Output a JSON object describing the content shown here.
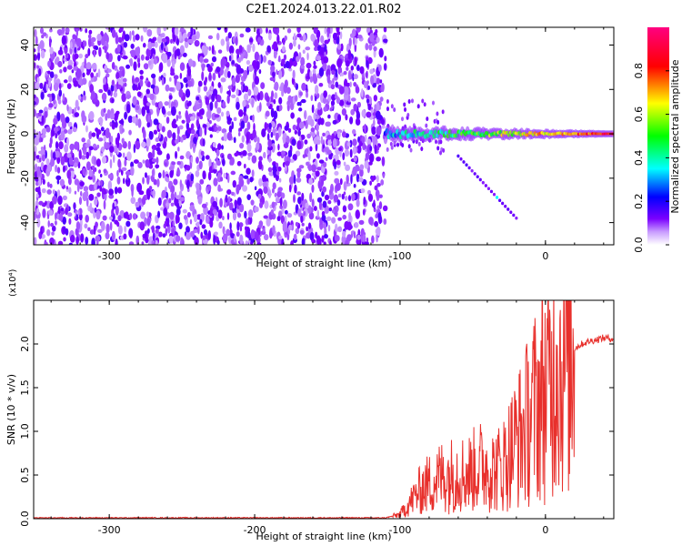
{
  "title": "C2E1.2024.013.22.01.R02",
  "chart_data": [
    {
      "type": "heatmap",
      "xlabel": "Height of straight line (km)",
      "ylabel": "Frequency (Hz)",
      "xlim": [
        -352,
        47
      ],
      "ylim": [
        -50,
        48
      ],
      "xticks": [
        -300,
        -200,
        -100,
        0
      ],
      "xtick_labels": [
        "-300",
        "-200",
        "-100",
        "0"
      ],
      "yticks": [
        -40,
        -20,
        0,
        20,
        40
      ],
      "ytick_labels": [
        "-40",
        "-20",
        "0",
        "20",
        "40"
      ],
      "colorbar": {
        "label": "Normalized spectral amplitude",
        "range": [
          0,
          1
        ],
        "ticks": [
          0.0,
          0.2,
          0.4,
          0.6,
          0.8
        ],
        "tick_labels": [
          "0.0",
          "0.2",
          "0.4",
          "0.6",
          "0.8"
        ],
        "colormap": [
          "#ffffff",
          "#7a00ff",
          "#0000ff",
          "#00ffff",
          "#00ff00",
          "#ffff00",
          "#ff0000",
          "#ff0080"
        ]
      },
      "features": {
        "noise_region_x": [
          -352,
          -110
        ],
        "noise_amplitude": 0.15,
        "signal_band": {
          "x": [
            -110,
            47
          ],
          "frequency": 0,
          "amplitude_start": 0.3,
          "amplitude_end": 0.85
        },
        "secondary_branch": {
          "x": [
            -60,
            -20
          ],
          "frequency": [
            -10,
            -38
          ],
          "amplitude": 0.35
        }
      }
    },
    {
      "type": "line",
      "xlabel": "Height of straight line (km)",
      "ylabel": "SNR (10 * v/v)",
      "y_multiplier": "(x10⁴)",
      "xlim": [
        -352,
        47
      ],
      "ylim": [
        0,
        2.5
      ],
      "xticks": [
        -300,
        -200,
        -100,
        0
      ],
      "xtick_labels": [
        "-300",
        "-200",
        "-100",
        "0"
      ],
      "yticks": [
        0.0,
        0.5,
        1.0,
        1.5,
        2.0
      ],
      "ytick_labels": [
        "0.0",
        "0.5",
        "1.0",
        "1.5",
        "2.0"
      ],
      "series": [
        {
          "color": "#e8302c",
          "x": [
            -352,
            -300,
            -250,
            -200,
            -150,
            -110,
            -100,
            -95,
            -90,
            -85,
            -80,
            -75,
            -70,
            -65,
            -60,
            -55,
            -50,
            -45,
            -40,
            -35,
            -30,
            -25,
            -20,
            -15,
            -10,
            -5,
            0,
            5,
            8,
            10,
            15,
            20,
            25,
            30,
            35,
            40,
            47
          ],
          "values": [
            0.01,
            0.01,
            0.01,
            0.01,
            0.01,
            0.01,
            0.05,
            0.15,
            0.25,
            0.35,
            0.4,
            0.45,
            0.5,
            0.5,
            0.55,
            0.5,
            0.55,
            0.6,
            0.6,
            0.55,
            0.6,
            0.75,
            0.9,
            1.0,
            1.2,
            1.35,
            1.5,
            1.6,
            2.0,
            1.7,
            1.85,
            1.95,
            2.0,
            2.03,
            2.05,
            2.07,
            2.06
          ]
        }
      ]
    }
  ]
}
